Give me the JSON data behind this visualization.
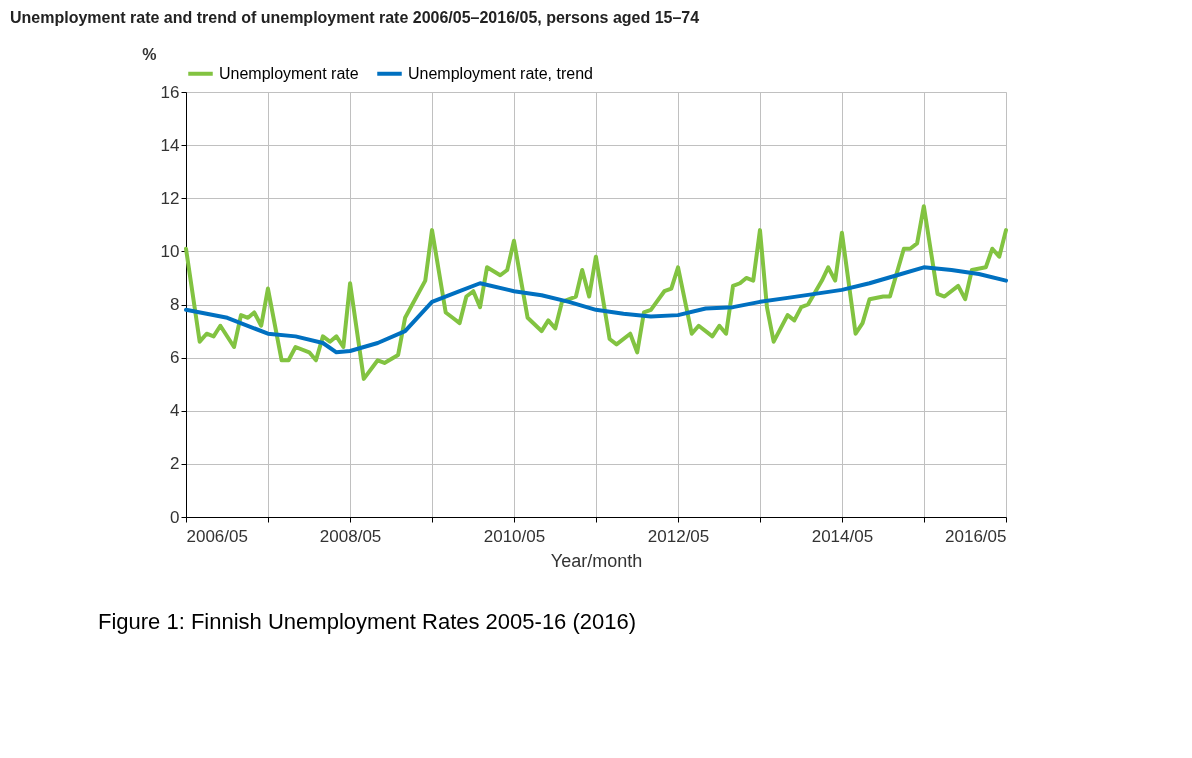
{
  "chart_data": {
    "type": "line",
    "title": "Unemployment rate and trend of unemployment rate 2006/05–2016/05, persons aged 15–74",
    "xlabel": "Year/month",
    "ylabel": "%",
    "annotations": [
      "Figure 1: Finnish Unemployment Rates 2005-16 (2016)"
    ],
    "series": [
      {
        "name": "Unemployment rate",
        "color": "#82c341",
        "x": [
          "2006-05",
          "2006-07",
          "2006-08",
          "2006-09",
          "2006-10",
          "2006-12",
          "2007-01",
          "2007-02",
          "2007-03",
          "2007-04",
          "2007-05",
          "2007-07",
          "2007-08",
          "2007-09",
          "2007-11",
          "2007-12",
          "2008-01",
          "2008-02",
          "2008-03",
          "2008-04",
          "2008-05",
          "2008-07",
          "2008-09",
          "2008-10",
          "2008-12",
          "2009-01",
          "2009-04",
          "2009-05",
          "2009-07",
          "2009-08",
          "2009-09",
          "2009-10",
          "2009-11",
          "2009-12",
          "2010-01",
          "2010-03",
          "2010-04",
          "2010-05",
          "2010-07",
          "2010-09",
          "2010-10",
          "2010-11",
          "2010-12",
          "2011-02",
          "2011-03",
          "2011-04",
          "2011-05",
          "2011-07",
          "2011-08",
          "2011-10",
          "2011-11",
          "2011-12",
          "2012-01",
          "2012-03",
          "2012-04",
          "2012-05",
          "2012-07",
          "2012-08",
          "2012-10",
          "2012-11",
          "2012-12",
          "2013-01",
          "2013-02",
          "2013-03",
          "2013-04",
          "2013-05",
          "2013-06",
          "2013-07",
          "2013-09",
          "2013-10",
          "2013-11",
          "2013-12",
          "2014-02",
          "2014-03",
          "2014-04",
          "2014-05",
          "2014-07",
          "2014-08",
          "2014-09",
          "2014-11",
          "2014-12",
          "2015-02",
          "2015-03",
          "2015-04",
          "2015-05",
          "2015-07",
          "2015-08",
          "2015-10",
          "2015-11",
          "2015-12",
          "2016-02",
          "2016-03",
          "2016-04",
          "2016-05"
        ],
        "values": [
          10.1,
          6.6,
          6.9,
          6.8,
          7.2,
          6.4,
          7.6,
          7.5,
          7.7,
          7.2,
          8.6,
          5.9,
          5.9,
          6.4,
          6.2,
          5.9,
          6.8,
          6.6,
          6.8,
          6.4,
          8.8,
          5.2,
          5.9,
          5.8,
          6.1,
          7.5,
          8.9,
          10.8,
          7.7,
          7.5,
          7.3,
          8.3,
          8.5,
          7.9,
          9.4,
          9.1,
          9.3,
          10.4,
          7.5,
          7.0,
          7.4,
          7.1,
          8.1,
          8.3,
          9.3,
          8.3,
          9.8,
          6.7,
          6.5,
          6.9,
          6.2,
          7.7,
          7.8,
          8.5,
          8.6,
          9.4,
          6.9,
          7.2,
          6.8,
          7.2,
          6.9,
          8.7,
          8.8,
          9.0,
          8.9,
          10.8,
          7.9,
          6.6,
          7.6,
          7.4,
          7.9,
          8.0,
          8.9,
          9.4,
          8.9,
          10.7,
          6.9,
          7.3,
          8.2,
          8.3,
          8.3,
          10.1,
          10.1,
          10.3,
          11.7,
          8.4,
          8.3,
          8.7,
          8.2,
          9.3,
          9.4,
          10.1,
          9.8,
          10.8
        ]
      },
      {
        "name": "Unemployment rate, trend",
        "color": "#0070c0",
        "x": [
          "2006-05",
          "2006-11",
          "2007-05",
          "2007-09",
          "2008-01",
          "2008-03",
          "2008-05",
          "2008-09",
          "2009-01",
          "2009-05",
          "2009-09",
          "2009-12",
          "2010-05",
          "2010-09",
          "2011-01",
          "2011-05",
          "2011-09",
          "2012-01",
          "2012-05",
          "2012-09",
          "2013-01",
          "2013-05",
          "2013-09",
          "2014-01",
          "2014-05",
          "2014-09",
          "2015-01",
          "2015-05",
          "2015-09",
          "2016-01",
          "2016-05"
        ],
        "values": [
          7.8,
          7.5,
          6.9,
          6.8,
          6.55,
          6.2,
          6.25,
          6.55,
          7.0,
          8.1,
          8.5,
          8.8,
          8.5,
          8.35,
          8.1,
          7.8,
          7.65,
          7.55,
          7.6,
          7.85,
          7.9,
          8.1,
          8.25,
          8.4,
          8.55,
          8.8,
          9.1,
          9.4,
          9.3,
          9.15,
          8.9
        ]
      }
    ],
    "xlim": [
      "2006-05",
      "2016-05"
    ],
    "xticks": [
      {
        "value": "2006-05",
        "label": "2006/05"
      },
      {
        "value": "2007-05",
        "label": null
      },
      {
        "value": "2008-05",
        "label": "2008/05"
      },
      {
        "value": "2009-05",
        "label": null
      },
      {
        "value": "2010-05",
        "label": "2010/05"
      },
      {
        "value": "2011-05",
        "label": null
      },
      {
        "value": "2012-05",
        "label": "2012/05"
      },
      {
        "value": "2013-05",
        "label": null
      },
      {
        "value": "2014-05",
        "label": "2014/05"
      },
      {
        "value": "2015-05",
        "label": null
      },
      {
        "value": "2016-05",
        "label": "2016/05"
      }
    ],
    "ylim": [
      0,
      16
    ],
    "yticks": [
      0,
      2,
      4,
      6,
      8,
      10,
      12,
      14,
      16
    ],
    "grid": true,
    "legend": "top",
    "marker": "none",
    "line_style": "solid"
  }
}
